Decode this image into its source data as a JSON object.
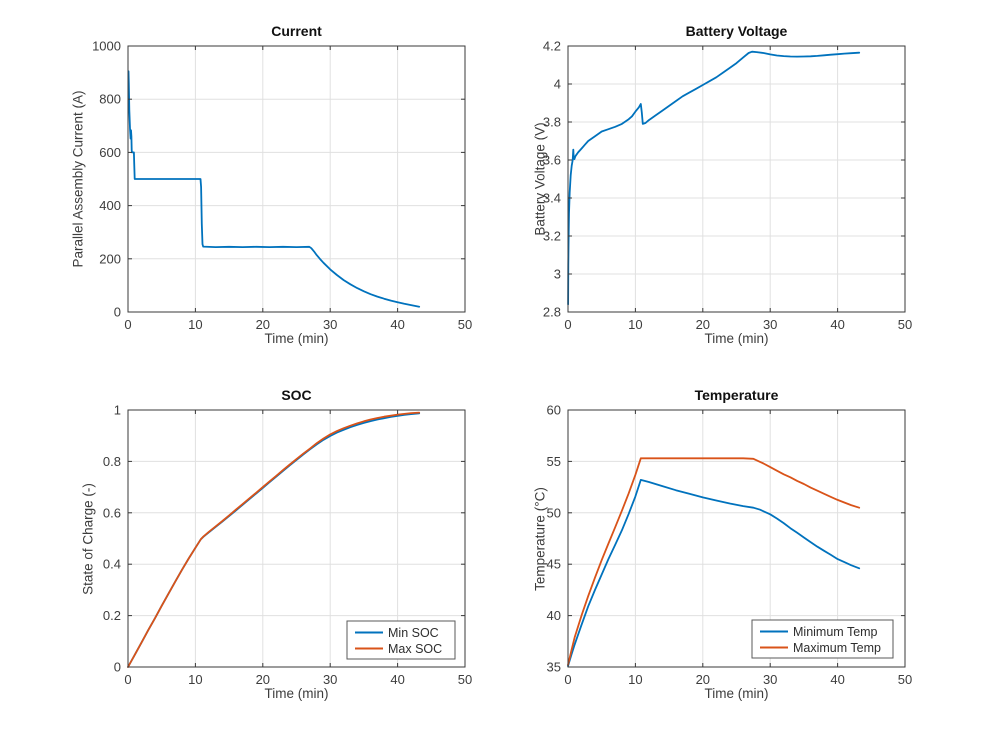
{
  "palette": {
    "series_blue": "#0072BD",
    "series_orange": "#D95319",
    "grid": "#e0e0e0",
    "axis": "#3a3a3a",
    "tick_text": "#3d3d3d",
    "legend_border": "#5a5a5a",
    "background": "#ffffff"
  },
  "chart_data": [
    {
      "id": "current",
      "type": "line",
      "title": "Current",
      "xlabel": "Time (min)",
      "ylabel": "Parallel Assembly Current (A)",
      "xlim": [
        0,
        50
      ],
      "ylim": [
        0,
        1000
      ],
      "grid": true,
      "legend": null,
      "xticks": {
        "values": [
          0,
          10,
          20,
          30,
          40,
          50
        ],
        "labels": [
          "0",
          "10",
          "20",
          "30",
          "40",
          "50"
        ]
      },
      "yticks": {
        "values": [
          0,
          200,
          400,
          600,
          800,
          1000
        ],
        "labels": [
          "0",
          "200",
          "400",
          "600",
          "800",
          "1000"
        ]
      },
      "series": [
        {
          "name": "Parallel Assembly Current",
          "color": "#0072BD",
          "x": [
            0.08,
            0.12,
            0.2,
            0.3,
            0.38,
            0.42,
            0.45,
            0.5,
            0.55,
            0.6,
            0.88,
            0.92,
            1.0,
            10.75,
            10.85,
            10.95,
            11.05,
            11.15,
            13,
            15,
            17,
            19,
            21,
            23,
            25,
            26.9,
            27.2,
            27.6,
            28,
            28.5,
            29,
            30,
            31,
            32,
            33,
            34,
            35,
            36,
            37,
            38,
            39,
            40,
            41,
            42,
            43.2
          ],
          "y": [
            905,
            860,
            760,
            690,
            652,
            668,
            683,
            660,
            608,
            600,
            600,
            560,
            500,
            500,
            470,
            330,
            255,
            246,
            244,
            245,
            244,
            245,
            244,
            245,
            244,
            245,
            240,
            228,
            214,
            199,
            185,
            160,
            139,
            120,
            104,
            90,
            78,
            67,
            58,
            50,
            43,
            37,
            31,
            26,
            20
          ]
        }
      ]
    },
    {
      "id": "battery_voltage",
      "type": "line",
      "title": "Battery Voltage",
      "xlabel": "Time (min)",
      "ylabel": "Battery Voltage (V)",
      "xlim": [
        0,
        50
      ],
      "ylim": [
        2.8,
        4.2
      ],
      "grid": true,
      "legend": null,
      "xticks": {
        "values": [
          0,
          10,
          20,
          30,
          40,
          50
        ],
        "labels": [
          "0",
          "10",
          "20",
          "30",
          "40",
          "50"
        ]
      },
      "yticks": {
        "values": [
          2.8,
          3.0,
          3.2,
          3.4,
          3.6,
          3.8,
          4.0,
          4.2
        ],
        "labels": [
          "2.8",
          "3",
          "3.2",
          "3.4",
          "3.6",
          "3.8",
          "4",
          "4.2"
        ]
      },
      "series": [
        {
          "name": "Battery Voltage",
          "color": "#0072BD",
          "x": [
            0.02,
            0.05,
            0.1,
            0.15,
            0.25,
            0.4,
            0.55,
            0.7,
            0.78,
            0.85,
            0.95,
            1.1,
            1.5,
            2,
            2.5,
            3,
            4,
            5,
            6,
            7,
            8,
            9,
            9.5,
            10,
            10.5,
            10.8,
            10.95,
            11.1,
            11.5,
            12,
            13,
            14,
            15,
            16,
            17,
            18,
            19,
            20,
            21,
            22,
            23,
            24,
            25,
            26,
            26.8,
            27.3,
            28,
            29,
            30,
            31,
            32,
            33,
            34,
            35,
            36,
            37,
            38,
            39,
            40,
            41,
            42,
            43.2
          ],
          "y": [
            2.84,
            3.05,
            3.22,
            3.32,
            3.43,
            3.52,
            3.57,
            3.6,
            3.655,
            3.61,
            3.605,
            3.62,
            3.64,
            3.66,
            3.68,
            3.7,
            3.725,
            3.75,
            3.762,
            3.775,
            3.79,
            3.815,
            3.83,
            3.855,
            3.877,
            3.895,
            3.85,
            3.79,
            3.795,
            3.81,
            3.835,
            3.86,
            3.885,
            3.91,
            3.935,
            3.955,
            3.975,
            3.995,
            4.015,
            4.035,
            4.06,
            4.085,
            4.11,
            4.14,
            4.163,
            4.17,
            4.168,
            4.163,
            4.156,
            4.15,
            4.147,
            4.145,
            4.144,
            4.145,
            4.146,
            4.148,
            4.151,
            4.154,
            4.157,
            4.16,
            4.162,
            4.165
          ]
        }
      ]
    },
    {
      "id": "soc",
      "type": "line",
      "title": "SOC",
      "xlabel": "Time (min)",
      "ylabel": "State of Charge (-)",
      "xlim": [
        0,
        50
      ],
      "ylim": [
        0,
        1
      ],
      "grid": true,
      "legend": {
        "position": "southeast",
        "entries": [
          "Min SOC",
          "Max SOC"
        ]
      },
      "xticks": {
        "values": [
          0,
          10,
          20,
          30,
          40,
          50
        ],
        "labels": [
          "0",
          "10",
          "20",
          "30",
          "40",
          "50"
        ]
      },
      "yticks": {
        "values": [
          0,
          0.2,
          0.4,
          0.6,
          0.8,
          1
        ],
        "labels": [
          "0",
          "0.2",
          "0.4",
          "0.6",
          "0.8",
          "1"
        ]
      },
      "series": [
        {
          "name": "Min SOC",
          "color": "#0072BD",
          "x": [
            0,
            1,
            2,
            3,
            4,
            5,
            6,
            7,
            8,
            9,
            10,
            10.8,
            11.2,
            12,
            13,
            14,
            15,
            16,
            17,
            18,
            19,
            20,
            21,
            22,
            23,
            24,
            25,
            26,
            27,
            28,
            29,
            30,
            31,
            32,
            33,
            34,
            35,
            36,
            37,
            38,
            39,
            40,
            41,
            42,
            43.2
          ],
          "y": [
            0,
            0.047,
            0.095,
            0.143,
            0.19,
            0.238,
            0.285,
            0.332,
            0.378,
            0.422,
            0.464,
            0.497,
            0.507,
            0.524,
            0.545,
            0.566,
            0.587,
            0.609,
            0.631,
            0.653,
            0.675,
            0.697,
            0.719,
            0.741,
            0.763,
            0.785,
            0.806,
            0.827,
            0.847,
            0.866,
            0.884,
            0.899,
            0.912,
            0.923,
            0.933,
            0.942,
            0.95,
            0.957,
            0.963,
            0.968,
            0.973,
            0.977,
            0.981,
            0.984,
            0.987
          ]
        },
        {
          "name": "Max SOC",
          "color": "#D95319",
          "x": [
            0,
            1,
            2,
            3,
            4,
            5,
            6,
            7,
            8,
            9,
            10,
            10.8,
            11.2,
            12,
            13,
            14,
            15,
            16,
            17,
            18,
            19,
            20,
            21,
            22,
            23,
            24,
            25,
            26,
            27,
            28,
            29,
            30,
            31,
            32,
            33,
            34,
            35,
            36,
            37,
            38,
            39,
            40,
            41,
            42,
            43.2
          ],
          "y": [
            0,
            0.047,
            0.095,
            0.143,
            0.19,
            0.238,
            0.285,
            0.332,
            0.378,
            0.422,
            0.464,
            0.497,
            0.508,
            0.526,
            0.547,
            0.568,
            0.59,
            0.612,
            0.634,
            0.656,
            0.678,
            0.7,
            0.722,
            0.744,
            0.766,
            0.788,
            0.809,
            0.83,
            0.85,
            0.871,
            0.889,
            0.905,
            0.918,
            0.929,
            0.939,
            0.948,
            0.956,
            0.963,
            0.969,
            0.974,
            0.978,
            0.982,
            0.985,
            0.988,
            0.99
          ]
        }
      ]
    },
    {
      "id": "temperature",
      "type": "line",
      "title": "Temperature",
      "xlabel": "Time (min)",
      "ylabel": "Temperature (°C)",
      "xlim": [
        0,
        50
      ],
      "ylim": [
        35,
        60
      ],
      "grid": true,
      "legend": {
        "position": "southeast",
        "entries": [
          "Minimum Temp",
          "Maximum Temp"
        ]
      },
      "xticks": {
        "values": [
          0,
          10,
          20,
          30,
          40,
          50
        ],
        "labels": [
          "0",
          "10",
          "20",
          "30",
          "40",
          "50"
        ]
      },
      "yticks": {
        "values": [
          35,
          40,
          45,
          50,
          55,
          60
        ],
        "labels": [
          "35",
          "40",
          "45",
          "50",
          "55",
          "60"
        ]
      },
      "series": [
        {
          "name": "Minimum Temp",
          "color": "#0072BD",
          "x": [
            0,
            0.5,
            1,
            2,
            3,
            4,
            5,
            6,
            7,
            8,
            9,
            10,
            10.8,
            12,
            14,
            16,
            18,
            20,
            22,
            24,
            26,
            27.5,
            28.5,
            29,
            30,
            31,
            32,
            33,
            34,
            35,
            36,
            37,
            38,
            39,
            40,
            41,
            42,
            43.2
          ],
          "y": [
            35.1,
            36.2,
            37.2,
            39.1,
            40.9,
            42.5,
            44,
            45.5,
            46.9,
            48.3,
            49.9,
            51.6,
            53.2,
            53,
            52.6,
            52.2,
            51.85,
            51.5,
            51.2,
            50.9,
            50.65,
            50.5,
            50.3,
            50.15,
            49.85,
            49.45,
            49,
            48.5,
            48.05,
            47.6,
            47.15,
            46.7,
            46.3,
            45.9,
            45.5,
            45.2,
            44.9,
            44.6
          ]
        },
        {
          "name": "Maximum Temp",
          "color": "#D95319",
          "x": [
            0,
            0.5,
            1,
            2,
            3,
            4,
            5,
            6,
            7,
            8,
            9,
            10,
            10.8,
            12,
            14,
            16,
            18,
            20,
            22,
            24,
            26,
            27.5,
            28.5,
            29,
            30,
            31,
            32,
            33,
            34,
            35,
            36,
            37,
            38,
            39,
            40,
            41,
            42,
            43.2
          ],
          "y": [
            35.2,
            36.6,
            37.9,
            40,
            41.9,
            43.7,
            45.4,
            47,
            48.6,
            50.2,
            51.9,
            53.7,
            55.3,
            55.3,
            55.3,
            55.3,
            55.3,
            55.3,
            55.3,
            55.3,
            55.3,
            55.25,
            54.95,
            54.8,
            54.45,
            54.1,
            53.75,
            53.45,
            53.1,
            52.8,
            52.45,
            52.15,
            51.85,
            51.55,
            51.25,
            51,
            50.75,
            50.5
          ]
        }
      ]
    }
  ]
}
